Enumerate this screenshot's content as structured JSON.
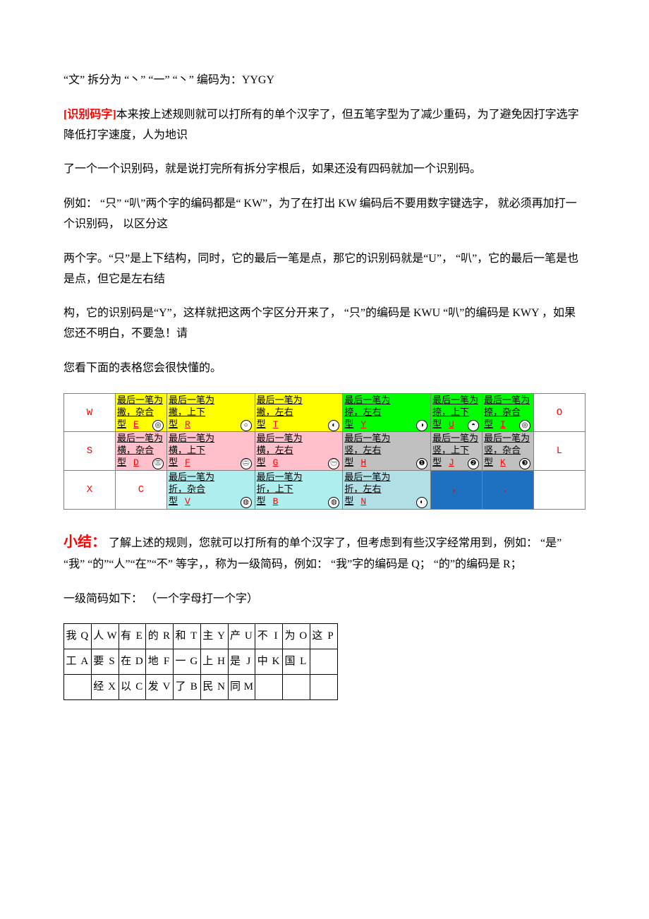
{
  "para1": "“文”  拆分为  “丶”  “一”  “丶”  编码为：YYGY",
  "para2_label": "[识别码字]",
  "para2_rest": "本来按上述规则就可以打所有的单个汉字了，但五笔字型为了减少重码，为了避免因打字选字降低打字速度，人为地识",
  "para3": "了一个一个识别码，就是说打完所有拆分字根后，如果还没有四码就加一个识别码。",
  "para4": "例如：  “只”  “叭”两个字的编码都是“ KW”，为了在打出 KW 编码后不要用数字键选字，  就必须再加打一个识别码，  以区分这",
  "para5": "两个字。“只”是上下结构，同时，它的最后一笔是点，那它的识别码就是“U”，  “叭”，它的最后一笔是也是点，但它是左右结",
  "para6": "构，它的识别码是“Y”，这样就把这两个字区分开来了，  “只”的编码是 KWU  “叭”的编码是 KWY ，如果您还不明白，不要急！请",
  "para7": "您看下面的表格您会很快懂的。",
  "id_table": {
    "row_left_keys": [
      "W",
      "S",
      "X"
    ],
    "row_right_keys": [
      "O",
      "L",
      ""
    ],
    "row1": [
      {
        "lines": [
          "最后一笔为",
          "撇，杂合",
          "型"
        ],
        "letter": "E",
        "sym": "◎",
        "bg": "bg-yellow"
      },
      {
        "lines": [
          "最后一笔为",
          "撇，上下",
          "型"
        ],
        "letter": "R",
        "sym": "○",
        "bg": "bg-yellow"
      },
      {
        "lines": [
          "最后一笔为",
          "撇，左右",
          "型"
        ],
        "letter": "T",
        "sym": "◐",
        "bg": "bg-yellow"
      },
      {
        "lines": [
          "最后一笔为",
          "捺，左右",
          "型"
        ],
        "letter": "Y",
        "sym": "◑",
        "bg": "bg-green"
      },
      {
        "lines": [
          "最后一笔为",
          "捺，上下",
          "型"
        ],
        "letter": "U",
        "sym": "◓",
        "bg": "bg-green"
      },
      {
        "lines": [
          "最后一笔为",
          "捺，杂合",
          "型"
        ],
        "letter": "I",
        "sym": "◎",
        "bg": "bg-green"
      }
    ],
    "row2": [
      {
        "lines": [
          "最后一笔为",
          "横，杂合",
          "型"
        ],
        "letter": "D",
        "sym": "㊂",
        "bg": "bg-pink"
      },
      {
        "lines": [
          "最后一笔为",
          "横，上下",
          "型"
        ],
        "letter": "F",
        "sym": "㊁",
        "bg": "bg-pink"
      },
      {
        "lines": [
          "最后一笔为",
          "横，左右",
          "型"
        ],
        "letter": "G",
        "sym": "㊀",
        "bg": "bg-pink"
      },
      {
        "lines": [
          "最后一笔为",
          "竖，左右",
          "型"
        ],
        "letter": "H",
        "sym": "❶",
        "bg": "bg-gray"
      },
      {
        "lines": [
          "最后一笔为",
          "竖，上下",
          "型"
        ],
        "letter": "J",
        "sym": "❷",
        "bg": "bg-gray"
      },
      {
        "lines": [
          "最后一笔为",
          "竖，杂合",
          "型"
        ],
        "letter": "K",
        "sym": "❸",
        "bg": "bg-gray"
      }
    ],
    "row3": [
      {
        "text": "C",
        "bg": "bg-white",
        "isKey": true
      },
      {
        "lines": [
          "最后一笔为",
          "折，杂合",
          "型"
        ],
        "letter": "V",
        "sym": "◍",
        "bg": "bg-lblue"
      },
      {
        "lines": [
          "最后一笔为",
          "折，上下",
          "型"
        ],
        "letter": "B",
        "sym": "◍",
        "bg": "bg-lblue"
      },
      {
        "lines": [
          "最后一笔为",
          "折，左右",
          "型"
        ],
        "letter": "N",
        "sym": "◐",
        "bg": "bg-ltblue"
      },
      {
        "text": "，",
        "bg": "bg-blue",
        "isKey": true
      },
      {
        "text": "．",
        "bg": "bg-blue",
        "isKey": true
      }
    ]
  },
  "summary_label": "小结：",
  "summary_rest": "  了解上述的规则，您就可以打所有的单个汉字了，但考虑到有些汉字经常用到，例如：  “是”  “我”  “的”“人”“在”“不”  等字，，称为一级简码，例如：  “我”字的编码是 Q；  “的”的编码是 R；",
  "para_simple_intro": "一级简码如下：  （一个字母打一个字）",
  "simple_table": {
    "rows": [
      [
        [
          "我",
          "Q"
        ],
        [
          "人",
          "W"
        ],
        [
          "有",
          "E"
        ],
        [
          "的",
          "R"
        ],
        [
          "和",
          "T"
        ],
        [
          "主",
          "Y"
        ],
        [
          "产",
          "U"
        ],
        [
          "不",
          "I"
        ],
        [
          "为",
          "O"
        ],
        [
          "这",
          "P"
        ]
      ],
      [
        [
          "工",
          "A"
        ],
        [
          "要",
          "S"
        ],
        [
          "在",
          "D"
        ],
        [
          "地",
          "F"
        ],
        [
          "一",
          "G"
        ],
        [
          "上",
          "H"
        ],
        [
          "是",
          "J"
        ],
        [
          "中",
          "K"
        ],
        [
          "国",
          "L"
        ],
        [
          "",
          ""
        ]
      ],
      [
        [
          "",
          ""
        ],
        [
          "经",
          "X"
        ],
        [
          "以",
          "C"
        ],
        [
          "发",
          "V"
        ],
        [
          "了",
          "B"
        ],
        [
          "民",
          "N"
        ],
        [
          "同",
          "M"
        ],
        [
          "",
          ""
        ],
        [
          "",
          ""
        ],
        [
          "",
          ""
        ]
      ]
    ]
  }
}
